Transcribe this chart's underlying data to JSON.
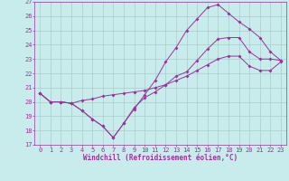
{
  "xlabel": "Windchill (Refroidissement éolien,°C)",
  "xlim": [
    -0.5,
    23.5
  ],
  "ylim": [
    17,
    27
  ],
  "xticks": [
    0,
    1,
    2,
    3,
    4,
    5,
    6,
    7,
    8,
    9,
    10,
    11,
    12,
    13,
    14,
    15,
    16,
    17,
    18,
    19,
    20,
    21,
    22,
    23
  ],
  "yticks": [
    17,
    18,
    19,
    20,
    21,
    22,
    23,
    24,
    25,
    26,
    27
  ],
  "bg_color": "#c8ecec",
  "grid_color": "#b0d8d8",
  "line_color": "#993399",
  "line1_x": [
    0,
    1,
    2,
    3,
    4,
    5,
    6,
    7,
    8,
    9,
    10,
    11,
    12,
    13,
    14,
    15,
    16,
    17,
    18,
    19,
    20,
    21,
    22,
    23
  ],
  "line1_y": [
    20.6,
    20.0,
    20.0,
    19.9,
    19.4,
    18.8,
    18.3,
    17.5,
    18.5,
    19.6,
    20.3,
    20.7,
    21.2,
    21.8,
    22.1,
    22.9,
    23.7,
    24.4,
    24.5,
    24.5,
    23.5,
    23.0,
    23.0,
    22.9
  ],
  "line2_x": [
    0,
    1,
    2,
    3,
    4,
    5,
    6,
    7,
    8,
    9,
    10,
    11,
    12,
    13,
    14,
    15,
    16,
    17,
    18,
    19,
    20,
    21,
    22,
    23
  ],
  "line2_y": [
    20.6,
    20.0,
    20.0,
    19.9,
    20.1,
    20.2,
    20.4,
    20.5,
    20.6,
    20.7,
    20.8,
    21.0,
    21.2,
    21.5,
    21.8,
    22.2,
    22.6,
    23.0,
    23.2,
    23.2,
    22.5,
    22.2,
    22.2,
    22.8
  ],
  "line3_x": [
    0,
    1,
    2,
    3,
    4,
    5,
    6,
    7,
    8,
    9,
    10,
    11,
    12,
    13,
    14,
    15,
    16,
    17,
    18,
    19,
    20,
    21,
    22,
    23
  ],
  "line3_y": [
    20.6,
    20.0,
    20.0,
    19.9,
    19.4,
    18.8,
    18.3,
    17.5,
    18.5,
    19.5,
    20.5,
    21.5,
    22.8,
    23.8,
    25.0,
    25.8,
    26.6,
    26.8,
    26.2,
    25.6,
    25.1,
    24.5,
    23.5,
    22.9
  ]
}
